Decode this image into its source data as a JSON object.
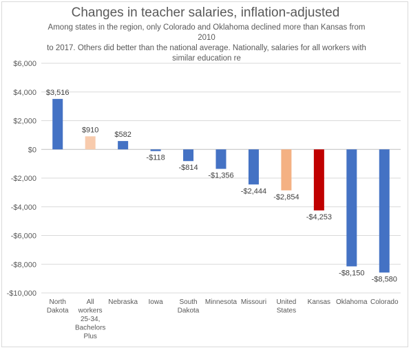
{
  "chart_data": {
    "type": "bar",
    "title": "Changes in teacher salaries, inflation-adjusted",
    "subtitle": [
      "Among states in the region, only Colorado and Oklahoma declined more than Kansas from 2010",
      "to 2017. Others did better than the national average. Nationally, salaries for all workers with",
      "similar education re"
    ],
    "categories": [
      [
        "North",
        "Dakota"
      ],
      [
        "All",
        "workers",
        "25-34,",
        "Bachelors",
        "Plus"
      ],
      [
        "Nebraska"
      ],
      [
        "Iowa"
      ],
      [
        "South",
        "Dakota"
      ],
      [
        "Minnesota"
      ],
      [
        "Missouri"
      ],
      [
        "United",
        "States"
      ],
      [
        "Kansas"
      ],
      [
        "Oklahoma"
      ],
      [
        "Colorado"
      ]
    ],
    "values": [
      3516,
      910,
      582,
      -118,
      -814,
      -1356,
      -2444,
      -2854,
      -4253,
      -8150,
      -8580
    ],
    "data_labels": [
      "$3,516",
      "$910",
      "$582",
      "-$118",
      "-$814",
      "-$1,356",
      "-$2,444",
      "-$2,854",
      "-$4,253",
      "-$8,150",
      "-$8,580"
    ],
    "colors": [
      "#4472c4",
      "#f8cbad",
      "#4472c4",
      "#4472c4",
      "#4472c4",
      "#4472c4",
      "#4472c4",
      "#f4b183",
      "#c00000",
      "#4472c4",
      "#4472c4"
    ],
    "ylim": [
      -10000,
      6000
    ],
    "yticks": [
      6000,
      4000,
      2000,
      0,
      -2000,
      -4000,
      -6000,
      -8000,
      -10000
    ],
    "ytick_labels": [
      "$6,000",
      "$4,000",
      "$2,000",
      "$0",
      "-$2,000",
      "-$4,000",
      "-$6,000",
      "-$8,000",
      "-$10,000"
    ],
    "grid": true,
    "legend": "none"
  }
}
